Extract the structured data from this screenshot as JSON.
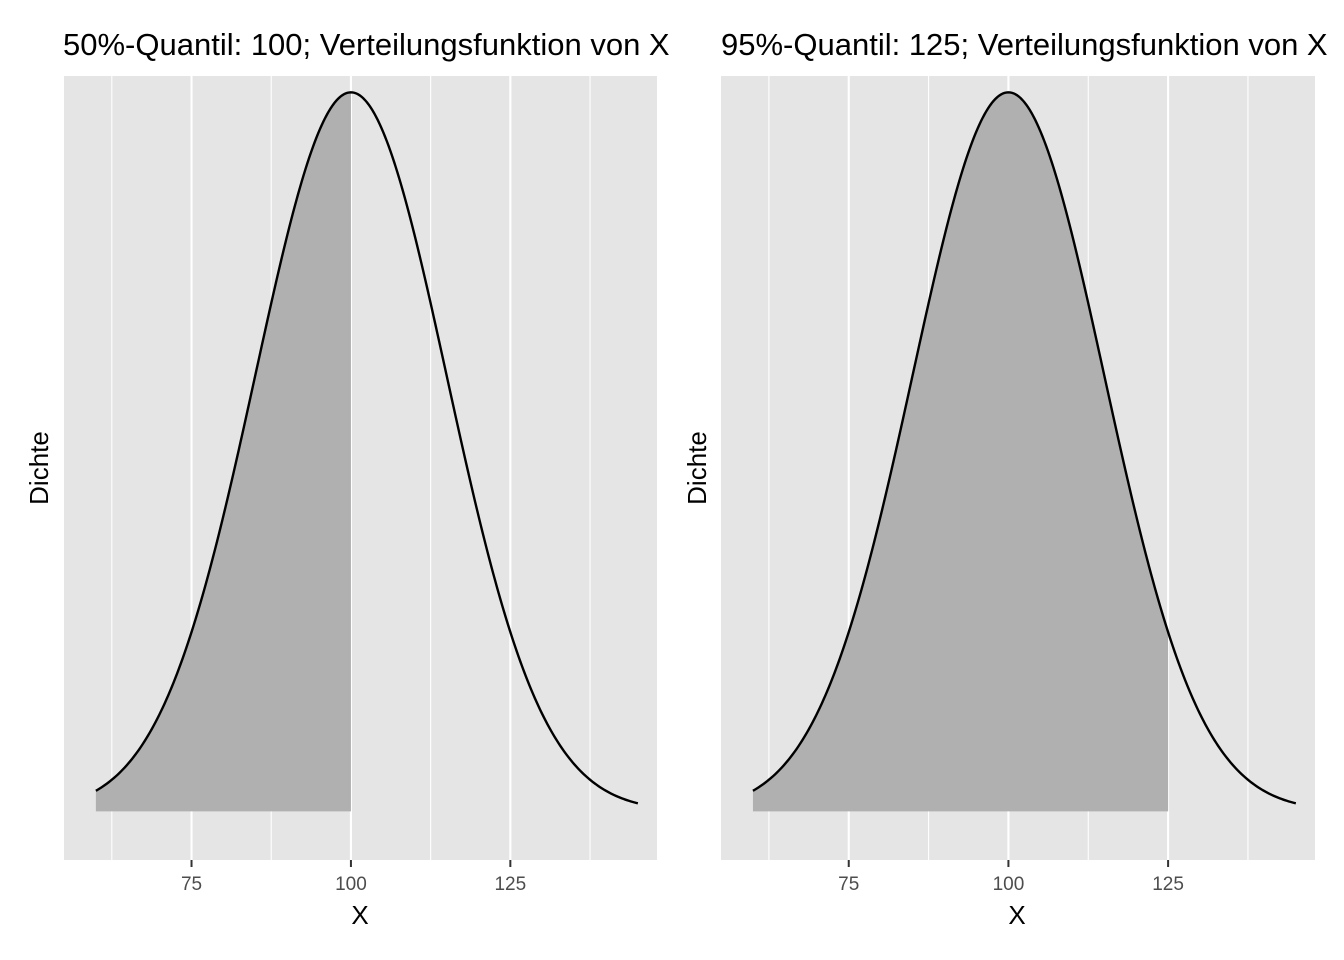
{
  "chart_data": [
    {
      "type": "area",
      "title": "50%-Quantil: 100; Verteilungsfunktion von X",
      "xlabel": "X",
      "ylabel": "Dichte",
      "distribution": {
        "mean": 100,
        "sd": 15
      },
      "x_range": [
        60,
        145
      ],
      "xlim": [
        55,
        148
      ],
      "ylim": [
        -0.0018,
        0.0272
      ],
      "shaded_area": {
        "from": 60,
        "to": 100
      },
      "x_ticks": [
        75,
        100,
        125
      ],
      "x_minor_ticks": [
        62.5,
        87.5,
        112.5,
        137.5
      ],
      "y_ticks_shown": false,
      "grid": true,
      "colors": {
        "panel_background": "#e5e5e5",
        "grid": "#ffffff",
        "fill": "#b0b0b0",
        "curve": "#000000"
      }
    },
    {
      "type": "area",
      "title": "95%-Quantil: 125; Verteilungsfunktion von X",
      "xlabel": "X",
      "ylabel": "Dichte",
      "distribution": {
        "mean": 100,
        "sd": 15
      },
      "x_range": [
        60,
        145
      ],
      "xlim": [
        55,
        148
      ],
      "ylim": [
        -0.0018,
        0.0272
      ],
      "shaded_area": {
        "from": 60,
        "to": 125
      },
      "x_ticks": [
        75,
        100,
        125
      ],
      "x_minor_ticks": [
        62.5,
        87.5,
        112.5,
        137.5
      ],
      "y_ticks_shown": false,
      "grid": true,
      "colors": {
        "panel_background": "#e5e5e5",
        "grid": "#ffffff",
        "fill": "#b0b0b0",
        "curve": "#000000"
      }
    }
  ]
}
